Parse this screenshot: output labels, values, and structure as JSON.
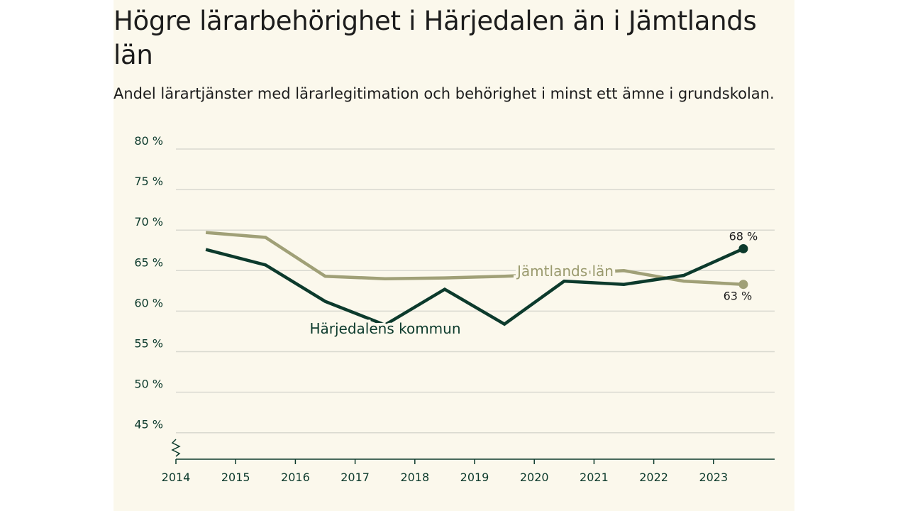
{
  "colors": {
    "background": "#fbf8ec",
    "jamtland": "#a0a077",
    "harjedalen": "#0c3a2c",
    "grid": "#d9d9d0"
  },
  "chart_data": {
    "type": "line",
    "title": "Högre lärarbehörighet i Härjedalen än i Jämtlands län",
    "subtitle": "Andel lärartjänster med lärarlegitimation och behörighet i minst ett ämne i grundskolan.",
    "y_tick_labels": [
      "80 %",
      "75 %",
      "70 %",
      "65 %",
      "60 %",
      "55 %",
      "50 %",
      "45 %"
    ],
    "y_tick_values": [
      80,
      75,
      70,
      65,
      60,
      55,
      50,
      45
    ],
    "ylim": [
      43,
      80
    ],
    "x_tick_labels": [
      "2014",
      "2015",
      "2016",
      "2017",
      "2018",
      "2019",
      "2020",
      "2021",
      "2022",
      "2023"
    ],
    "x_tick_values": [
      2014,
      2015,
      2016,
      2017,
      2018,
      2019,
      2020,
      2021,
      2022,
      2023
    ],
    "x": [
      2014.5,
      2015.5,
      2016.5,
      2017.5,
      2018.5,
      2019.5,
      2020.5,
      2021.5,
      2022.5,
      2023.5
    ],
    "series": [
      {
        "name": "Jämtlands län",
        "label": "Jämtlands län",
        "values": [
          69.7,
          69.1,
          64.3,
          64.0,
          64.1,
          64.3,
          64.6,
          65.0,
          63.7,
          63.3
        ],
        "end_label": "63 %"
      },
      {
        "name": "Härjedalens kommun",
        "label": "Härjedalens kommun",
        "values": [
          67.6,
          65.7,
          61.2,
          58.3,
          62.7,
          58.4,
          63.7,
          63.3,
          64.4,
          67.7
        ],
        "end_label": "68 %"
      }
    ]
  }
}
